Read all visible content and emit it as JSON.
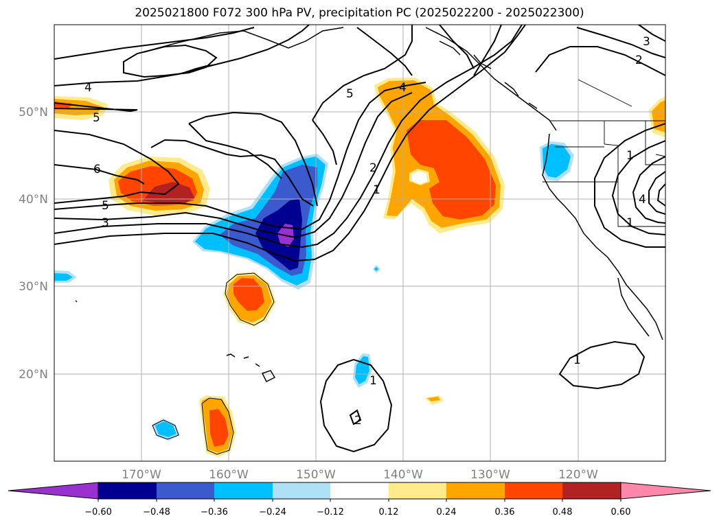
{
  "title": "2025021800 F072 300 hPa PV, precipitation PC (2025022200 - 2025022300)",
  "colors": {
    "c_n060": "#9b30d0",
    "c_n048": "#000090",
    "c_n036": "#3a5acd",
    "c_n024": "#00bfff",
    "c_n012": "#aee0f8",
    "c_zero": "#ffffff",
    "c_p012": "#ffeb8c",
    "c_p024": "#ffa500",
    "c_p036": "#ff4500",
    "c_p048": "#b22222",
    "c_p060": "#ff88aa",
    "grid": "#b0b0b0",
    "tick_label": "#808080"
  },
  "map": {
    "lon_range": [
      -180,
      -110
    ],
    "lat_range": [
      10,
      60
    ],
    "lon_ticks": [
      "170°W",
      "160°W",
      "150°W",
      "140°W",
      "130°W",
      "120°W"
    ],
    "lat_ticks": [
      "50°N",
      "40°N",
      "30°N",
      "20°N"
    ],
    "grid": true,
    "contour_field": "300 hPa PV",
    "shaded_field": "precipitation PC"
  },
  "contour_labels": [
    "4",
    "5",
    "6",
    "5",
    "3",
    "5",
    "2",
    "1",
    "4",
    "2",
    "1",
    "1",
    "1",
    "1",
    "2",
    "3",
    "4"
  ],
  "colorbar": {
    "ticks": [
      "−0.60",
      "−0.48",
      "−0.36",
      "−0.24",
      "−0.12",
      "0.12",
      "0.24",
      "0.36",
      "0.48",
      "0.60"
    ],
    "extend": "both"
  }
}
